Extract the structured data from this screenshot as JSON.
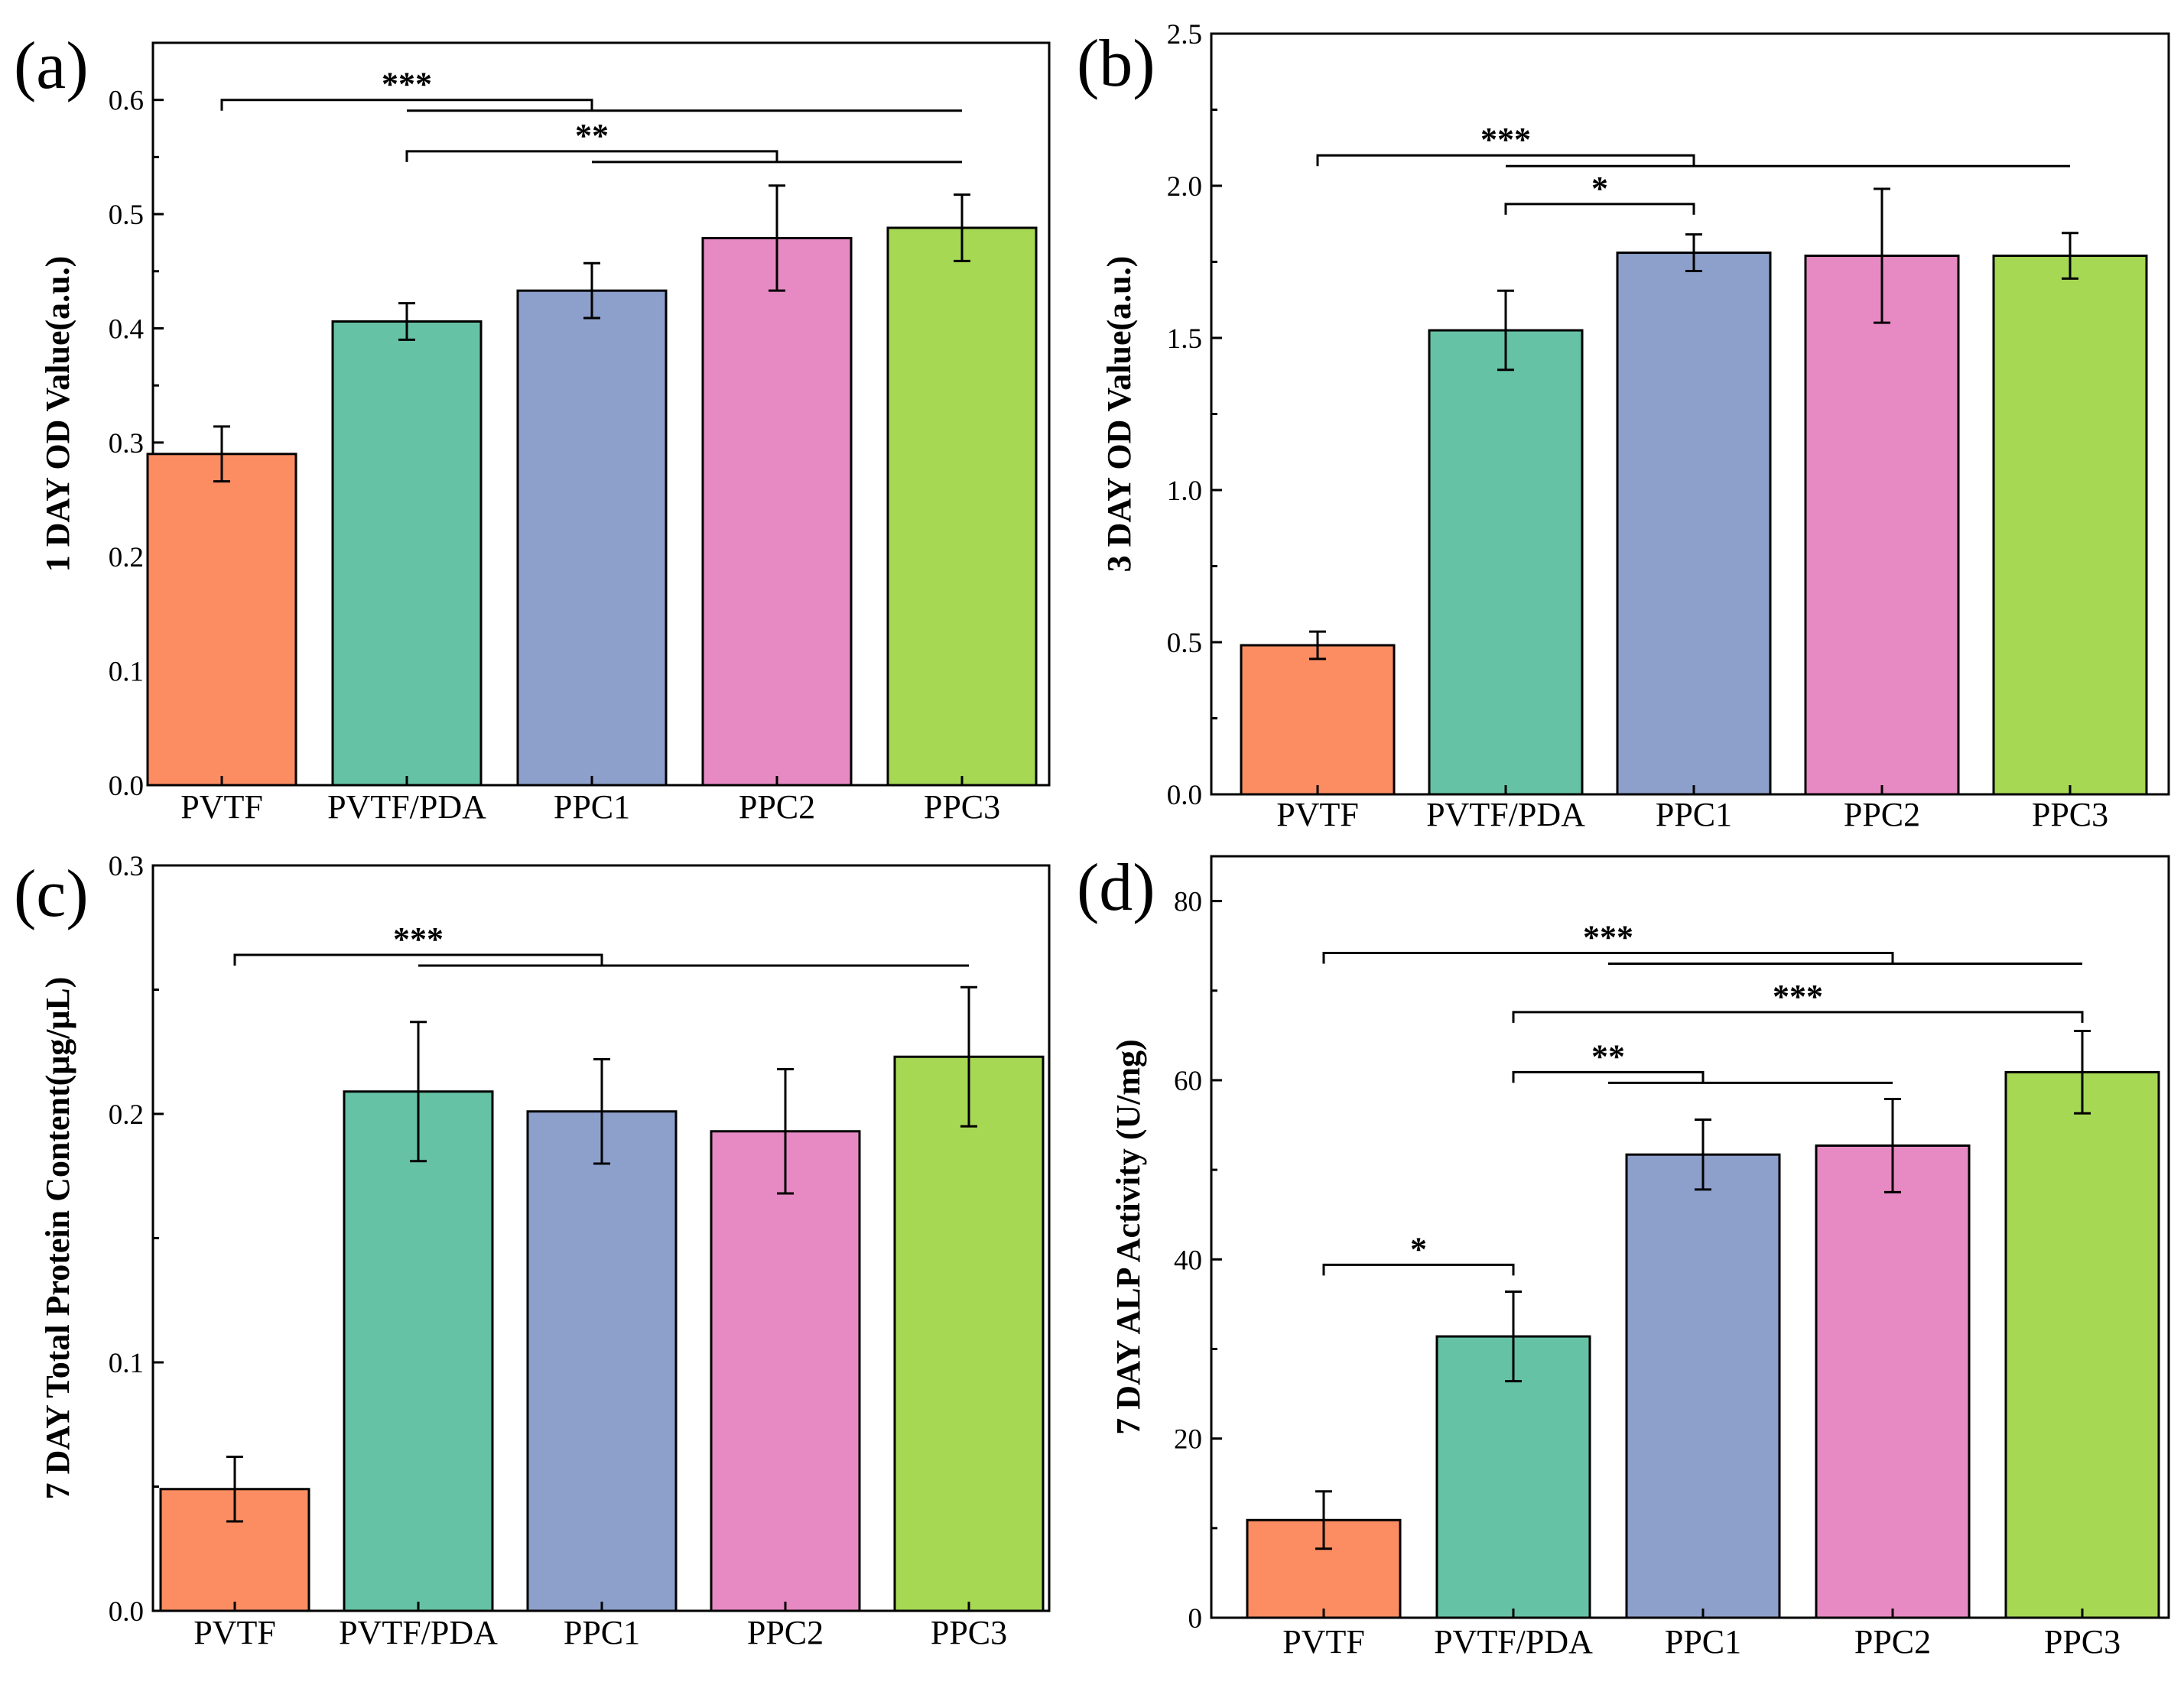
{
  "chart_data": [
    {
      "panel": "(a)",
      "type": "bar",
      "categories": [
        "PVTF",
        "PVTF/PDA",
        "PPC1",
        "PPC2",
        "PPC3"
      ],
      "values": [
        0.29,
        0.406,
        0.433,
        0.479,
        0.488
      ],
      "errors": [
        0.024,
        0.016,
        0.024,
        0.046,
        0.029
      ],
      "ylabel": "1 DAY OD Value(a.u.)",
      "ylim": [
        0,
        0.65
      ],
      "yticks": [
        0.0,
        0.1,
        0.2,
        0.3,
        0.4,
        0.5,
        0.6
      ],
      "ytick_labels": [
        "0.0",
        "0.1",
        "0.2",
        "0.3",
        "0.4",
        "0.5",
        "0.6"
      ],
      "significance": [
        {
          "label": "***",
          "from": 0,
          "to": [
            2,
            4
          ],
          "y": 0.6
        },
        {
          "label": "**",
          "from": 1,
          "to": [
            3,
            4
          ],
          "y": 0.555
        }
      ]
    },
    {
      "panel": "(b)",
      "type": "bar",
      "categories": [
        "PVTF",
        "PVTF/PDA",
        "PPC1",
        "PPC2",
        "PPC3"
      ],
      "values": [
        0.49,
        1.525,
        1.78,
        1.77,
        1.77
      ],
      "errors": [
        0.045,
        0.13,
        0.06,
        0.22,
        0.075
      ],
      "ylabel": "3 DAY OD Value(a.u.)",
      "ylim": [
        0,
        2.5
      ],
      "yticks": [
        0.0,
        0.5,
        1.0,
        1.5,
        2.0,
        2.5
      ],
      "ytick_labels": [
        "0.0",
        "0.5",
        "1.0",
        "1.5",
        "2.0",
        "2.5"
      ],
      "significance": [
        {
          "label": "***",
          "from": 0,
          "to": [
            2,
            4
          ],
          "y": 2.1
        },
        {
          "label": "*",
          "from": 1,
          "to": [
            2
          ],
          "y": 1.94
        }
      ]
    },
    {
      "panel": "(c)",
      "type": "bar",
      "categories": [
        "PVTF",
        "PVTF/PDA",
        "PPC1",
        "PPC2",
        "PPC3"
      ],
      "values": [
        0.049,
        0.209,
        0.201,
        0.193,
        0.223
      ],
      "errors": [
        0.013,
        0.028,
        0.021,
        0.025,
        0.028
      ],
      "ylabel": "7 DAY Total Protein Content(μg/μL)",
      "ylim": [
        0,
        0.3
      ],
      "yticks": [
        0.0,
        0.1,
        0.2,
        0.3
      ],
      "ytick_labels": [
        "0.0",
        "0.1",
        "0.2",
        "0.3"
      ],
      "significance": [
        {
          "label": "***",
          "from": 0,
          "to": [
            2,
            4
          ],
          "y": 0.264
        }
      ]
    },
    {
      "panel": "(d)",
      "type": "bar",
      "categories": [
        "PVTF",
        "PVTF/PDA",
        "PPC1",
        "PPC2",
        "PPC3"
      ],
      "values": [
        10.9,
        31.4,
        51.7,
        52.7,
        60.9
      ],
      "errors": [
        3.2,
        5.0,
        3.9,
        5.2,
        4.6
      ],
      "ylabel": "7 DAY ALP Activity (U/mg)",
      "ylim": [
        0,
        85
      ],
      "yticks": [
        0,
        20,
        40,
        60,
        80
      ],
      "ytick_labels": [
        "0",
        "20",
        "40",
        "60",
        "80"
      ],
      "significance": [
        {
          "label": "***",
          "from": 0,
          "to": [
            3,
            4
          ],
          "y": 74.2
        },
        {
          "label": "***",
          "from": 1,
          "to": [
            4
          ],
          "y": 67.6
        },
        {
          "label": "**",
          "from": 1,
          "to": [
            2,
            3
          ],
          "y": 60.9
        },
        {
          "label": "*",
          "from": 0,
          "to": [
            1
          ],
          "y": 39.4
        }
      ]
    }
  ],
  "colors": {
    "bars": [
      "#fc8d62",
      "#66c2a5",
      "#8da0cb",
      "#e78ac3",
      "#a6d854"
    ],
    "axis": "#000000",
    "background": "#ffffff"
  }
}
